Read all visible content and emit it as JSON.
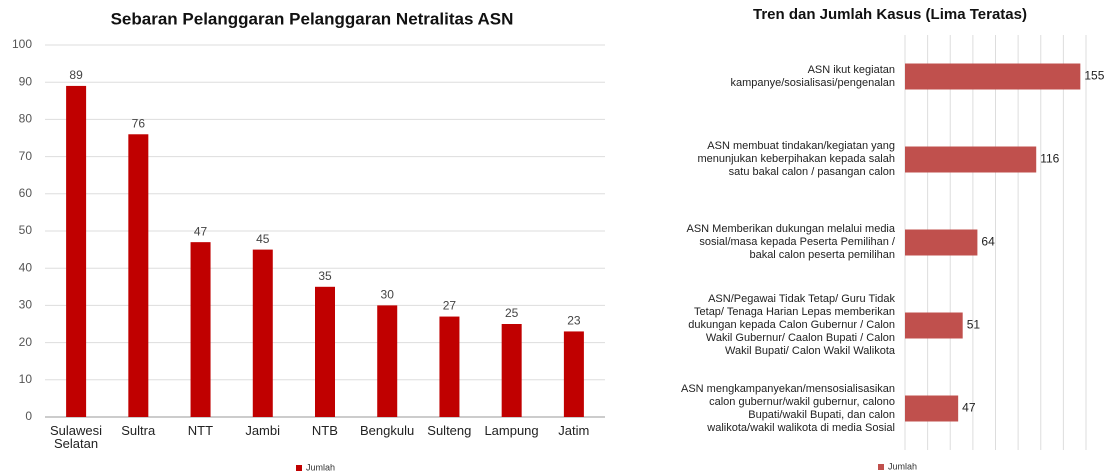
{
  "chart_data": [
    {
      "type": "bar",
      "title": "Sebaran Pelanggaran Pelanggaran Netralitas ASN",
      "categories": [
        "Sulawesi Selatan",
        "Sultra",
        "NTT",
        "Jambi",
        "NTB",
        "Bengkulu",
        "Sulteng",
        "Lampung",
        "Jatim"
      ],
      "series": [
        {
          "name": "Jumlah",
          "color": "#c00000",
          "values": [
            89,
            76,
            47,
            45,
            35,
            30,
            27,
            25,
            23
          ]
        }
      ],
      "ylim": [
        0,
        100
      ],
      "yticks": [
        0,
        10,
        20,
        30,
        40,
        50,
        60,
        70,
        80,
        90,
        100
      ],
      "grid": true,
      "legend": "bottom"
    },
    {
      "type": "hbar",
      "title": "Tren dan Jumlah Kasus (Lima Teratas)",
      "categories": [
        "ASN ikut kegiatan kampanye/sosialisasi/pengenalan",
        "ASN membuat tindakan/kegiatan yang menunjukan keberpihakan kepada salah satu bakal calon / pasangan calon",
        "ASN Memberikan dukungan melalui media sosial/masa kepada Peserta Pemilihan / bakal calon peserta pemilihan",
        "ASN/Pegawai Tidak Tetap/ Guru Tidak Tetap/ Tenaga Harian Lepas memberikan dukungan kepada Calon Gubernur / Calon Wakil Gubernur/ Caalon Bupati / Calon Wakil Bupati/ Calon Wakil Walikota",
        "ASN mengkampanyekan/mensosialisasikan calon gubernur/wakil gubernur, calono Bupati/wakil Bupati, dan calon walikota/wakil walikota di media Sosial"
      ],
      "series": [
        {
          "name": "Jumlah",
          "color": "#c0504d",
          "values": [
            155,
            116,
            64,
            51,
            47
          ]
        }
      ],
      "xlim": [
        0,
        160
      ],
      "xticks": [
        0,
        20,
        40,
        60,
        80,
        100,
        120,
        140,
        160
      ],
      "grid": true,
      "legend": "bottom"
    }
  ]
}
